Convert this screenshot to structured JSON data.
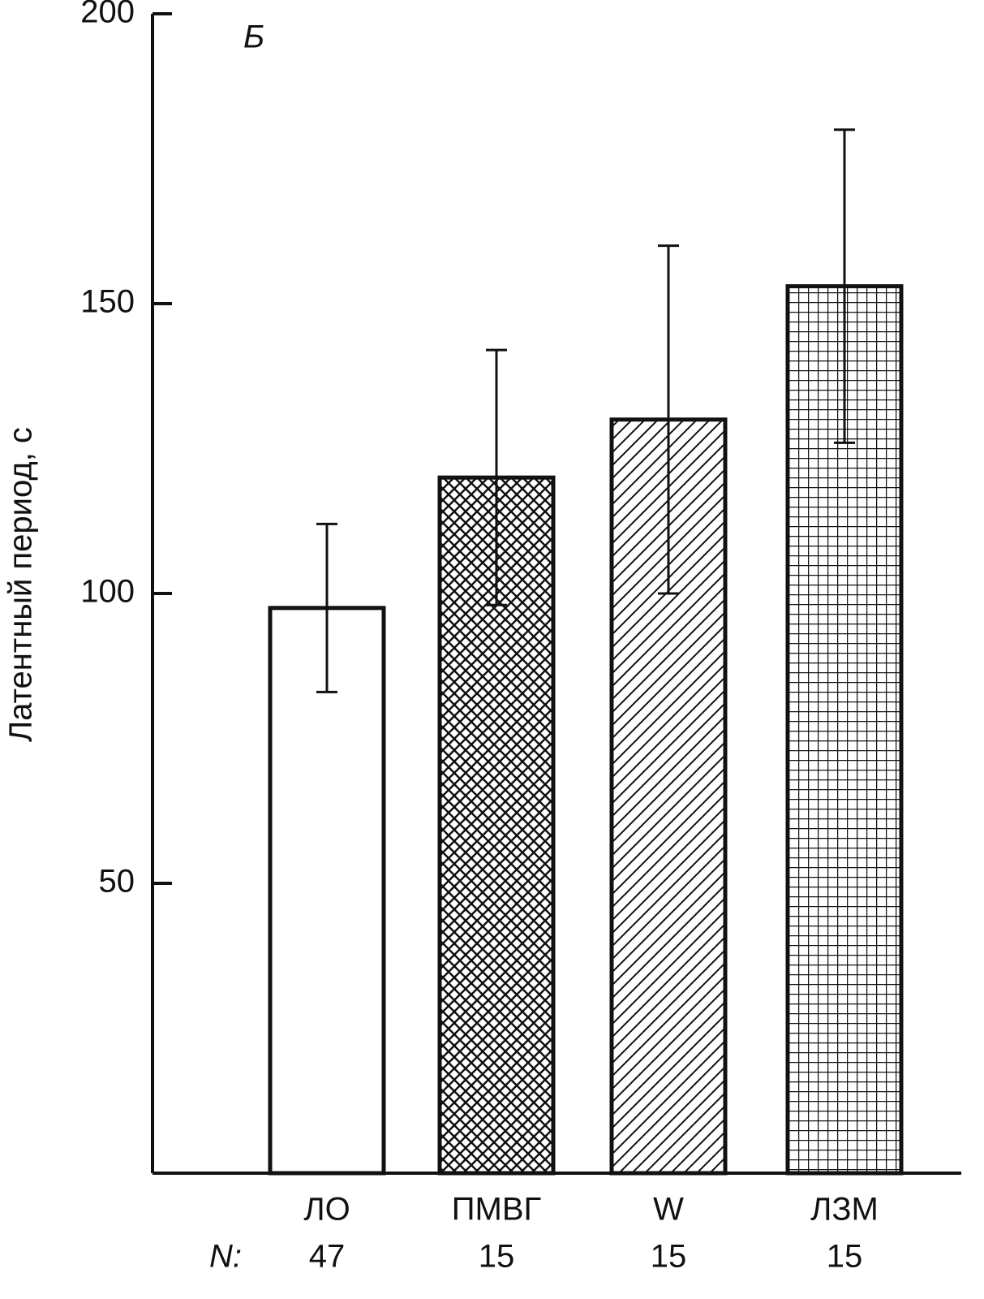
{
  "chart_data": {
    "type": "bar",
    "panel_label": "Б",
    "y_label": "Латентный период, с",
    "categories": [
      "ЛО",
      "ПМВГ",
      "W",
      "ЛЗМ"
    ],
    "values": [
      97.5,
      120,
      130,
      153
    ],
    "errors": [
      14.5,
      22,
      30,
      27
    ],
    "n_label": "N:",
    "n_values": [
      47,
      15,
      15,
      15
    ],
    "patterns": [
      "none",
      "crosshatch",
      "diagonal",
      "grid"
    ],
    "color": "#111111",
    "ylim": [
      0,
      200
    ],
    "yticks": [
      50,
      100,
      150,
      200
    ]
  }
}
